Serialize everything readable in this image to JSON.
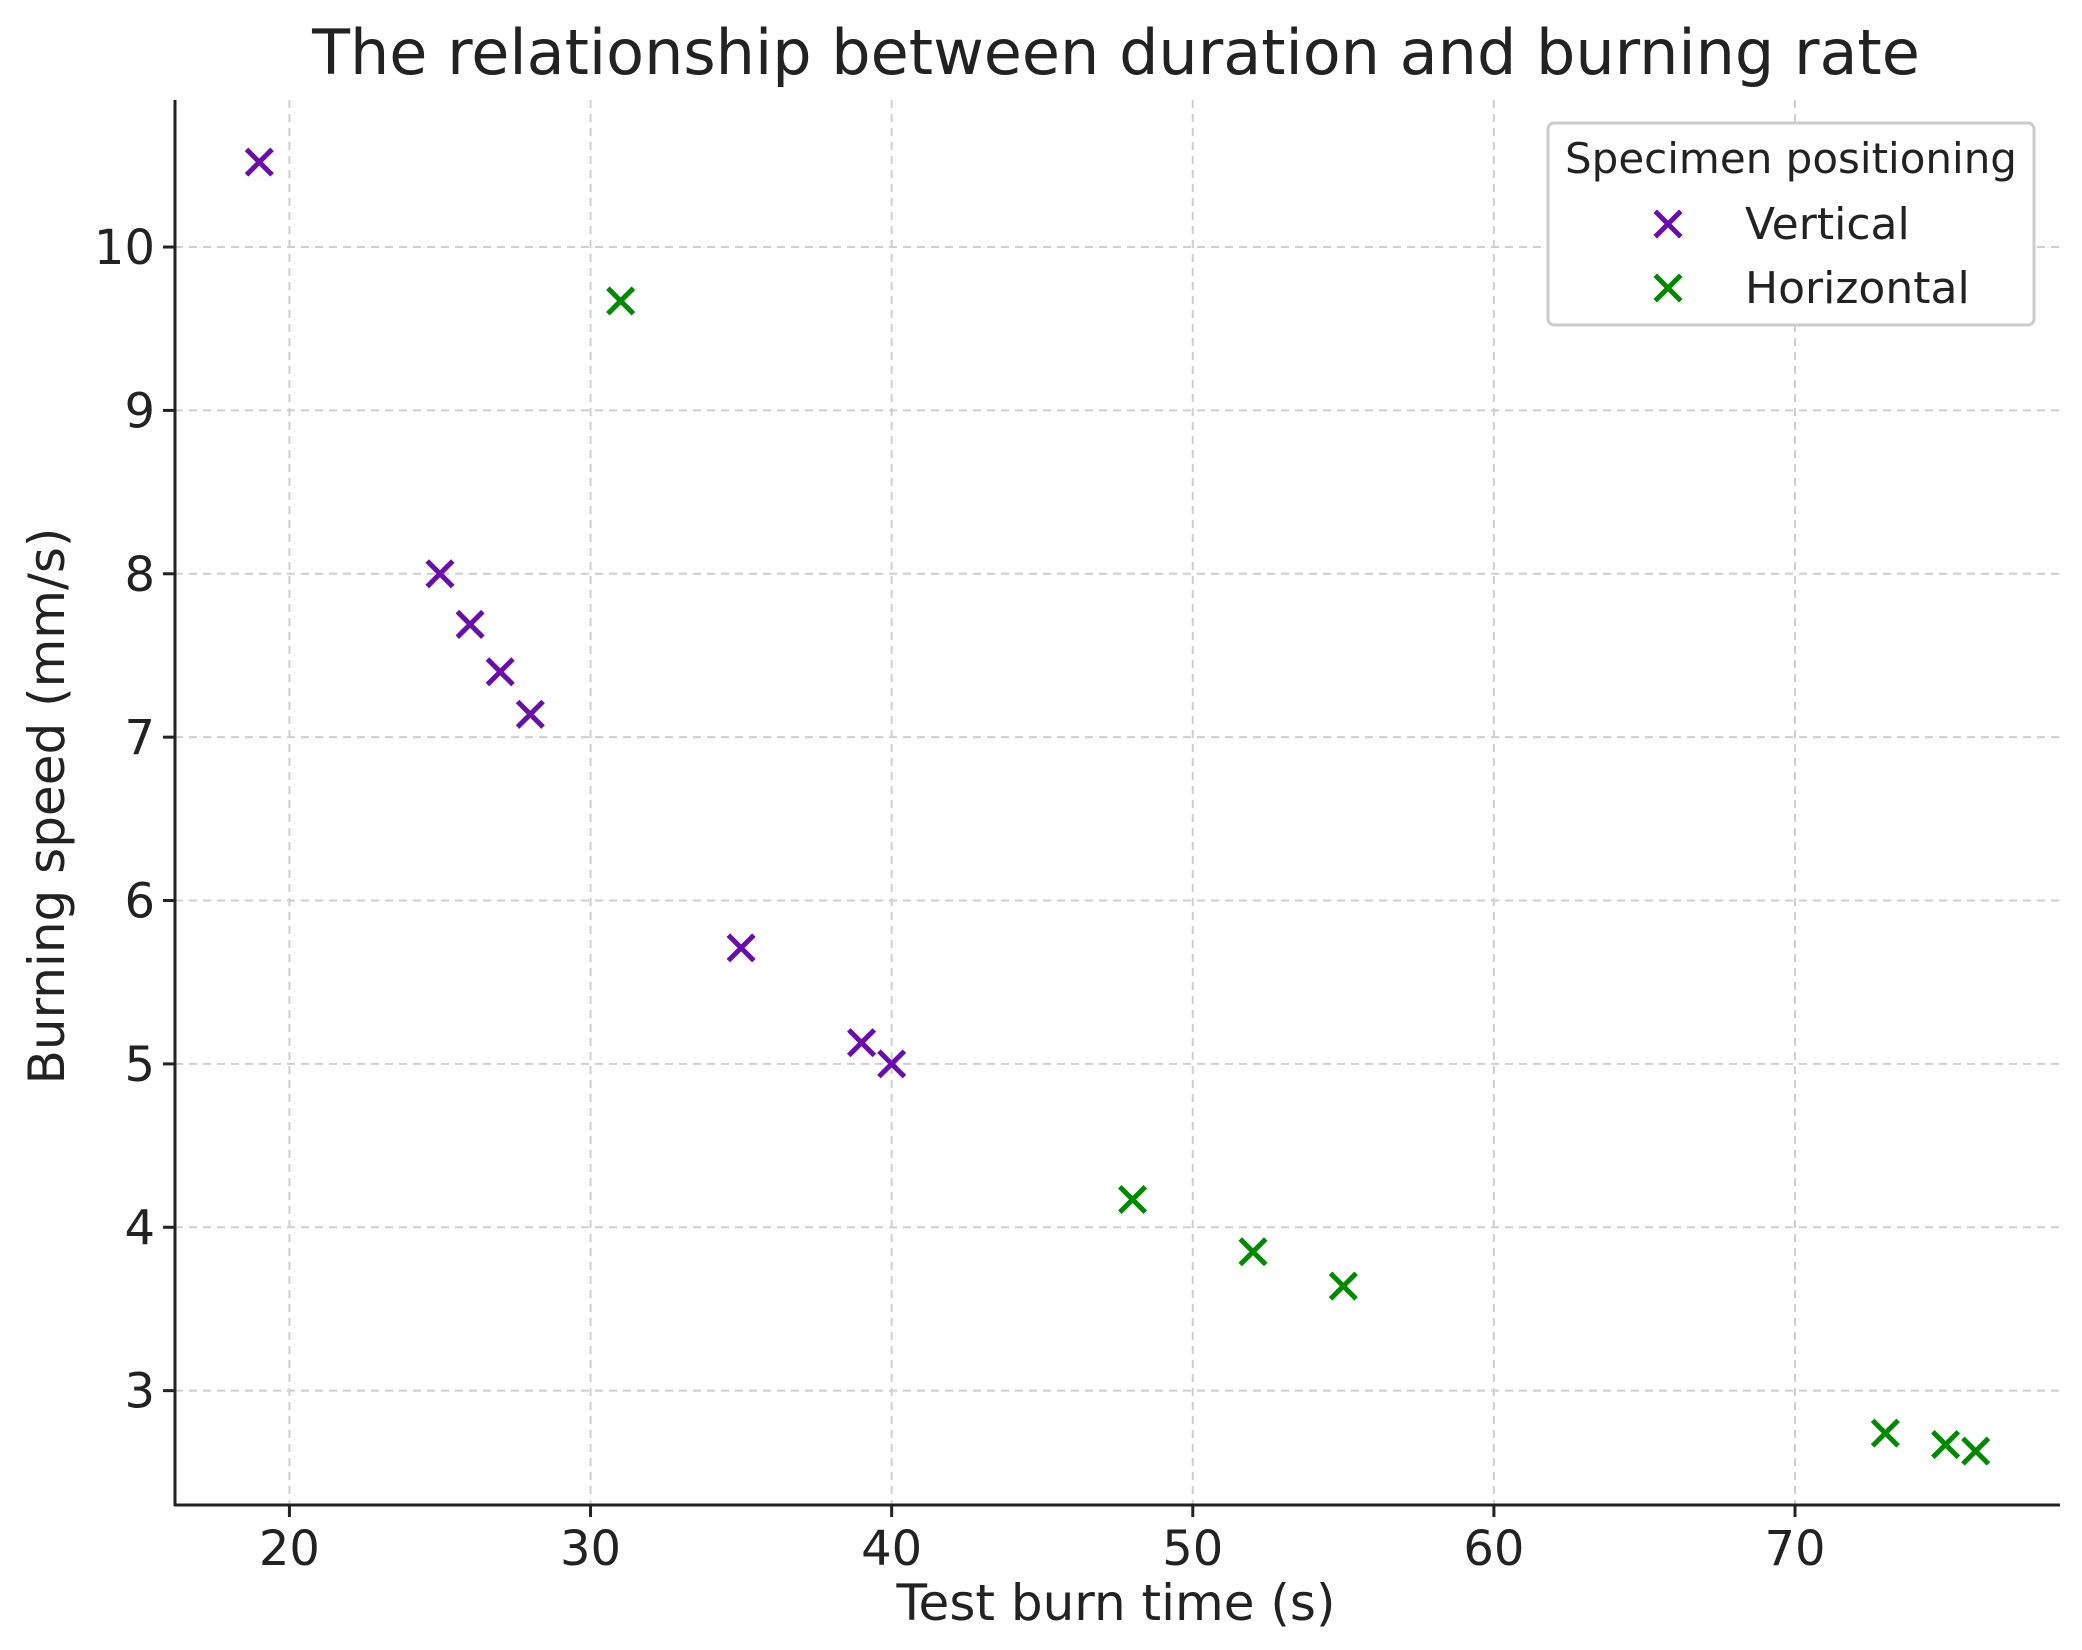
{
  "chart_data": {
    "type": "scatter",
    "title": "The relationship between duration and burning rate",
    "xlabel": "Test burn time (s)",
    "ylabel": "Burning speed (mm/s)",
    "xlim": [
      16.2,
      78.8
    ],
    "ylim": [
      2.3,
      10.9
    ],
    "xticks": [
      20,
      30,
      40,
      50,
      60,
      70
    ],
    "yticks": [
      3,
      4,
      5,
      6,
      7,
      8,
      9,
      10
    ],
    "grid": true,
    "marker": "x",
    "legend": {
      "title": "Specimen positioning",
      "placement": "top-right"
    },
    "series": [
      {
        "name": "Vertical",
        "color": "#6a0dad",
        "points": [
          {
            "x": 19,
            "y": 10.52
          },
          {
            "x": 25,
            "y": 8.0
          },
          {
            "x": 26,
            "y": 7.69
          },
          {
            "x": 27,
            "y": 7.4
          },
          {
            "x": 28,
            "y": 7.14
          },
          {
            "x": 35,
            "y": 5.71
          },
          {
            "x": 39,
            "y": 5.13
          },
          {
            "x": 40,
            "y": 5.0
          }
        ]
      },
      {
        "name": "Horizontal",
        "color": "#008a00",
        "points": [
          {
            "x": 31,
            "y": 9.67
          },
          {
            "x": 48,
            "y": 4.17
          },
          {
            "x": 52,
            "y": 3.85
          },
          {
            "x": 55,
            "y": 3.64
          },
          {
            "x": 73,
            "y": 2.74
          },
          {
            "x": 75,
            "y": 2.67
          },
          {
            "x": 76,
            "y": 2.63
          }
        ]
      }
    ]
  }
}
